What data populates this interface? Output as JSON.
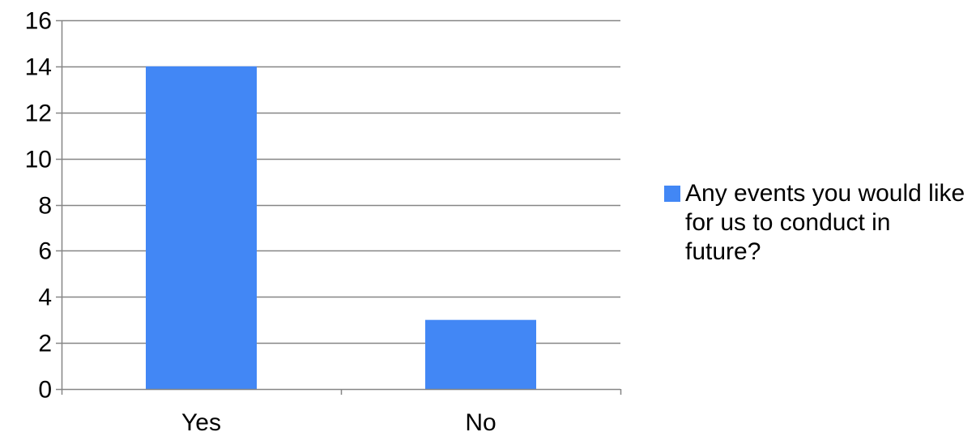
{
  "chart_data": {
    "type": "bar",
    "categories": [
      "Yes",
      "No"
    ],
    "series": [
      {
        "name": "Any events you would like for us to conduct in future?",
        "values": [
          14,
          3
        ]
      }
    ],
    "title": "",
    "xlabel": "",
    "ylabel": "",
    "ylim": [
      0,
      16
    ],
    "yticks": [
      "0",
      "2",
      "4",
      "6",
      "8",
      "10",
      "12",
      "14",
      "16"
    ],
    "grid": true,
    "legend_position": "right",
    "colors": {
      "bar": "#4287F5",
      "grid": "#868686",
      "axis": "#868686"
    }
  }
}
